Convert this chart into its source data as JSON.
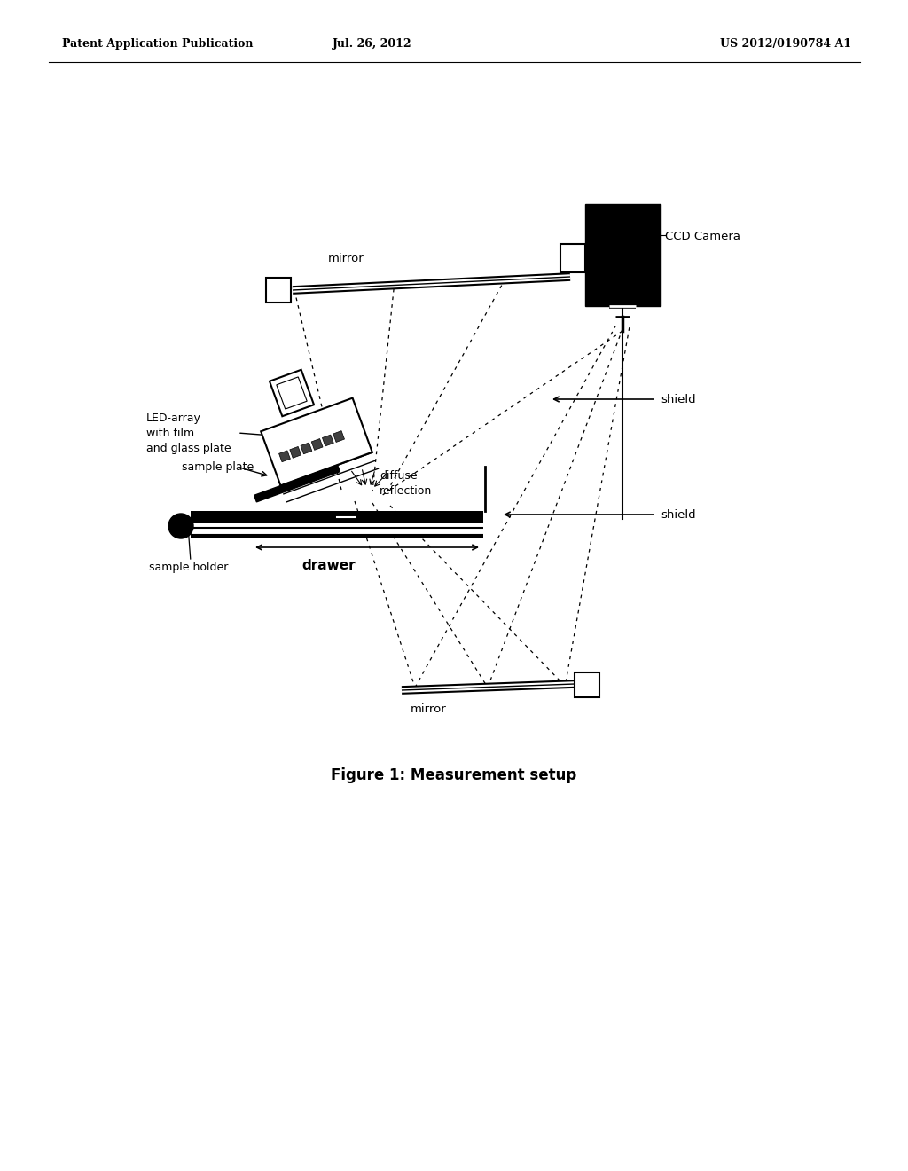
{
  "background_color": "#ffffff",
  "header_left": "Patent Application Publication",
  "header_center": "Jul. 26, 2012",
  "header_right": "US 2012/0190784 A1",
  "figure_caption": "Figure 1: Measurement setup",
  "labels": {
    "mirror_top": "mirror",
    "ccd_camera": "CCD Camera",
    "led_array_l1": "LED-array",
    "led_array_l2": "with film",
    "led_array_l3": "and glass plate",
    "sample_plate": "sample plate",
    "diffuse_l1": "diffuse",
    "diffuse_l2": "reflection",
    "shield_top": "shield",
    "shield_bot": "shield",
    "sample_holder": "sample holder",
    "drawer": "drawer",
    "mirror_bot": "mirror"
  },
  "colors": {
    "black": "#000000",
    "white": "#ffffff"
  }
}
